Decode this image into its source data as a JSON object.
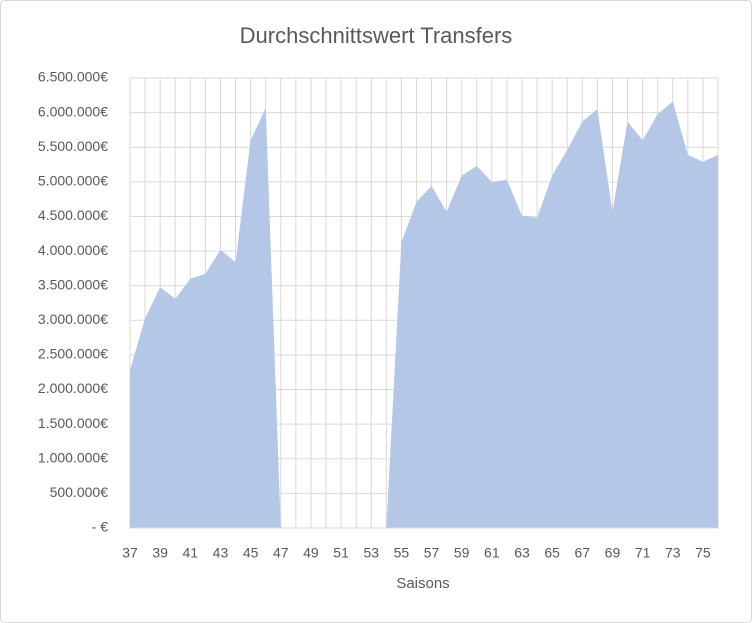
{
  "chart_data": {
    "type": "area",
    "title": "Durchschnittswert Transfers",
    "x_label": "Saisons",
    "categories": [
      37,
      null,
      39,
      null,
      41,
      null,
      43,
      null,
      45,
      null,
      47,
      null,
      49,
      null,
      51,
      null,
      53,
      null,
      55,
      null,
      57,
      null,
      59,
      null,
      61,
      null,
      63,
      null,
      65,
      null,
      67,
      null,
      69,
      null,
      71,
      null,
      73,
      null,
      75,
      null
    ],
    "series": [
      {
        "name": "Durchschnittswert",
        "color": "#b4c7e7",
        "values": [
          2280000,
          3030000,
          3480000,
          3310000,
          3600000,
          3670000,
          4020000,
          3840000,
          5600000,
          6070000,
          0,
          0,
          0,
          0,
          0,
          0,
          0,
          0,
          4130000,
          4710000,
          4940000,
          4570000,
          5090000,
          5230000,
          5000000,
          5030000,
          4510000,
          4480000,
          5090000,
          5460000,
          5870000,
          6050000,
          4570000,
          5870000,
          5600000,
          5980000,
          6160000,
          5390000,
          5290000,
          5390000
        ]
      }
    ],
    "ylim": [
      0,
      6500000
    ],
    "yticks": [
      {
        "value": 0,
        "label": "-  €"
      },
      {
        "value": 500000,
        "label": "500.000€"
      },
      {
        "value": 1000000,
        "label": "1.000.000€"
      },
      {
        "value": 1500000,
        "label": "1.500.000€"
      },
      {
        "value": 2000000,
        "label": "2.000.000€"
      },
      {
        "value": 2500000,
        "label": "2.500.000€"
      },
      {
        "value": 3000000,
        "label": "3.000.000€"
      },
      {
        "value": 3500000,
        "label": "3.500.000€"
      },
      {
        "value": 4000000,
        "label": "4.000.000€"
      },
      {
        "value": 4500000,
        "label": "4.500.000€"
      },
      {
        "value": 5000000,
        "label": "5.000.000€"
      },
      {
        "value": 5500000,
        "label": "5.500.000€"
      },
      {
        "value": 6000000,
        "label": "6.000.000€"
      },
      {
        "value": 6500000,
        "label": "6.500.000€"
      }
    ],
    "grid": true
  }
}
